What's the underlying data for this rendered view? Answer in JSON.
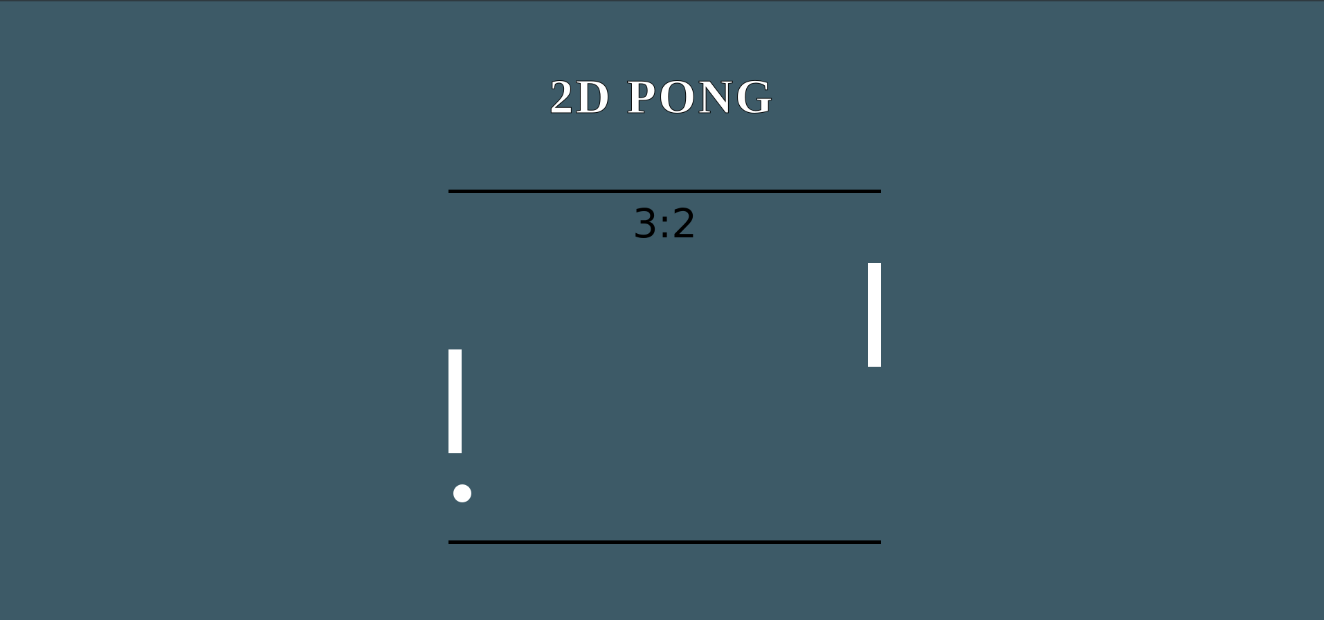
{
  "game": {
    "title": "2D PONG",
    "score": "3:2",
    "score_left": 3,
    "score_right": 2
  },
  "colors": {
    "background": "#3d5a67",
    "walls": "#000000",
    "paddles": "#ffffff",
    "ball": "#ffffff",
    "score_text": "#000000",
    "title_text": "#ffffff"
  }
}
